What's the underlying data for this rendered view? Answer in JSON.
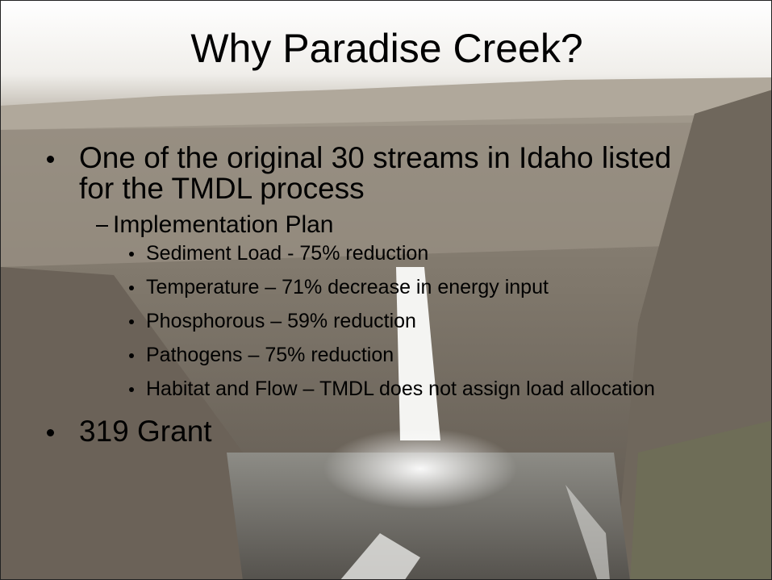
{
  "slide": {
    "title": "Why Paradise Creek?",
    "bullets": [
      {
        "text": "One of the original 30 streams in Idaho listed for the TMDL process",
        "subitems": [
          {
            "text": "Implementation Plan",
            "subitems": [
              "Sediment Load - 75% reduction",
              "Temperature – 71% decrease in energy input",
              "Phosphorous – 59% reduction",
              "Pathogens – 75% reduction",
              "Habitat and Flow – TMDL does not assign load allocation"
            ]
          }
        ]
      },
      {
        "text": "319 Grant"
      }
    ]
  }
}
